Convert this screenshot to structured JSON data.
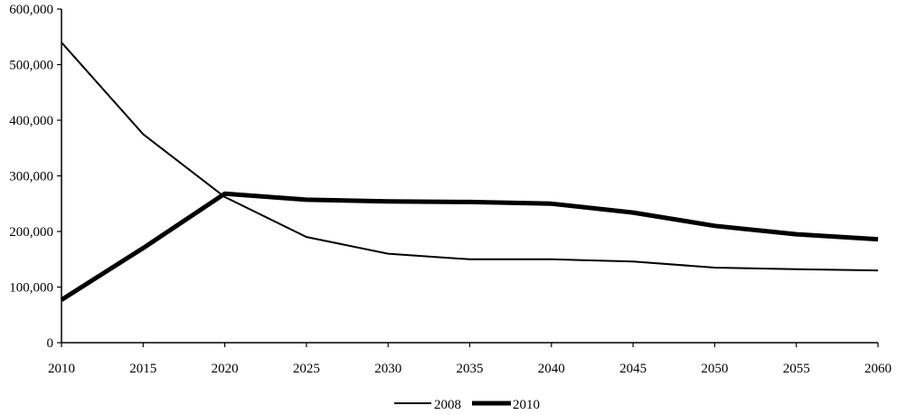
{
  "chart_data": {
    "type": "line",
    "title": "",
    "xlabel": "",
    "ylabel": "",
    "x": [
      2010,
      2015,
      2020,
      2025,
      2030,
      2035,
      2040,
      2045,
      2050,
      2055,
      2060
    ],
    "x_ticks": [
      "2010",
      "2015",
      "2020",
      "2025",
      "2030",
      "2035",
      "2040",
      "2045",
      "2050",
      "2055",
      "2060"
    ],
    "ylim": [
      0,
      600000
    ],
    "y_ticks": [
      {
        "value": 0,
        "label": "0"
      },
      {
        "value": 100000,
        "label": "100,000"
      },
      {
        "value": 200000,
        "label": "200,000"
      },
      {
        "value": 300000,
        "label": "300,000"
      },
      {
        "value": 400000,
        "label": "400,000"
      },
      {
        "value": 500000,
        "label": "500,000"
      },
      {
        "value": 600000,
        "label": "600,000"
      }
    ],
    "grid": false,
    "legend_position": "bottom-center",
    "series": [
      {
        "name": "2008",
        "style": "thin",
        "color": "#000000",
        "values": [
          540000,
          375000,
          262000,
          190000,
          160000,
          150000,
          150000,
          146000,
          135000,
          132000,
          130000
        ]
      },
      {
        "name": "2010",
        "style": "thick",
        "color": "#000000",
        "values": [
          77000,
          170000,
          268000,
          257000,
          254000,
          253000,
          250000,
          234000,
          210000,
          195000,
          186000
        ]
      }
    ]
  }
}
